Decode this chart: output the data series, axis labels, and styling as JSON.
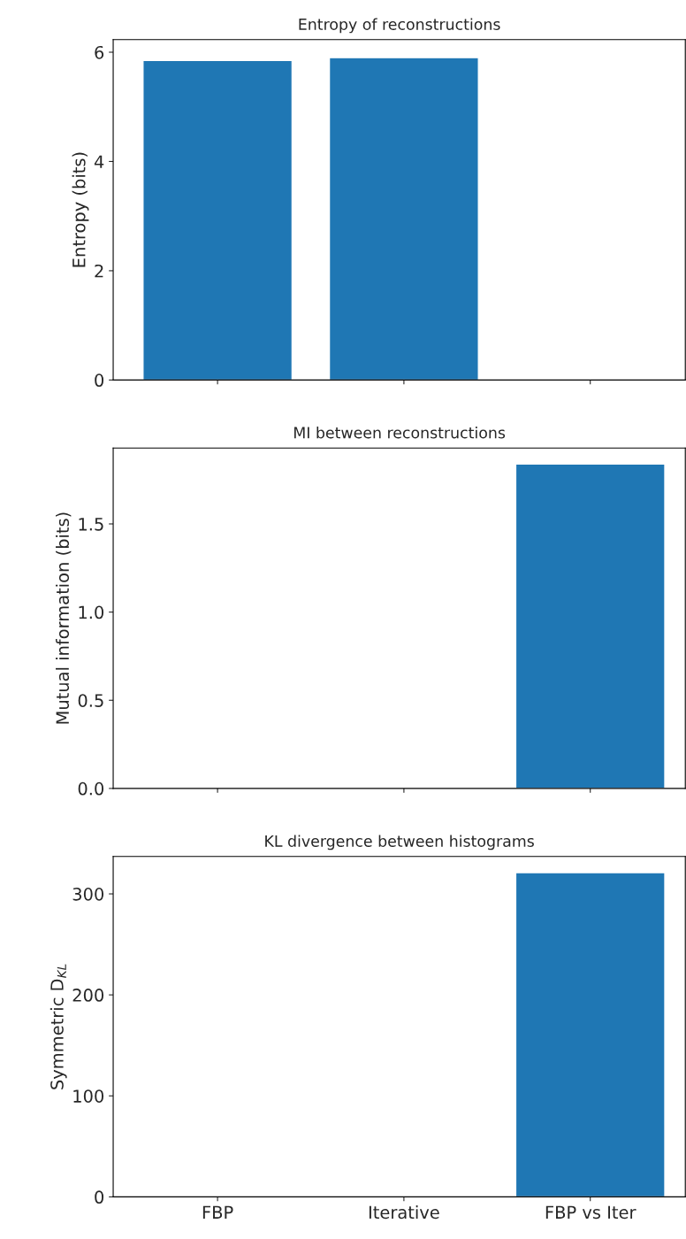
{
  "chart_data": [
    {
      "type": "bar",
      "title": "Entropy of reconstructions",
      "ylabel": "Entropy (bits)",
      "values": [
        5.85,
        5.9,
        null
      ],
      "color": "#1f77b4",
      "ylim": [
        0,
        6.23
      ],
      "yticks": [
        0,
        2,
        4,
        6
      ],
      "tick_labels": "y"
    },
    {
      "type": "bar",
      "title": "MI between reconstructions",
      "ylabel": "Mutual information (bits)",
      "values": [
        null,
        null,
        1.84
      ],
      "color": "#1f77b4",
      "ylim": [
        0,
        1.93
      ],
      "yticks": [
        {
          "value": 0,
          "label": "0.0"
        },
        0.5,
        {
          "value": 1,
          "label": "1.0"
        },
        1.5
      ],
      "tick_labels": "y"
    },
    {
      "type": "bar",
      "title": "KL divergence between histograms",
      "ylabel": "Symmetric D$_{KL}$",
      "categories": [
        "FBP",
        "Iterative",
        "FBP vs Iter"
      ],
      "values": [
        null,
        null,
        321
      ],
      "color": "#1f77b4",
      "ylim": [
        0,
        337
      ],
      "yticks": [
        0,
        100,
        200,
        300
      ]
    }
  ]
}
